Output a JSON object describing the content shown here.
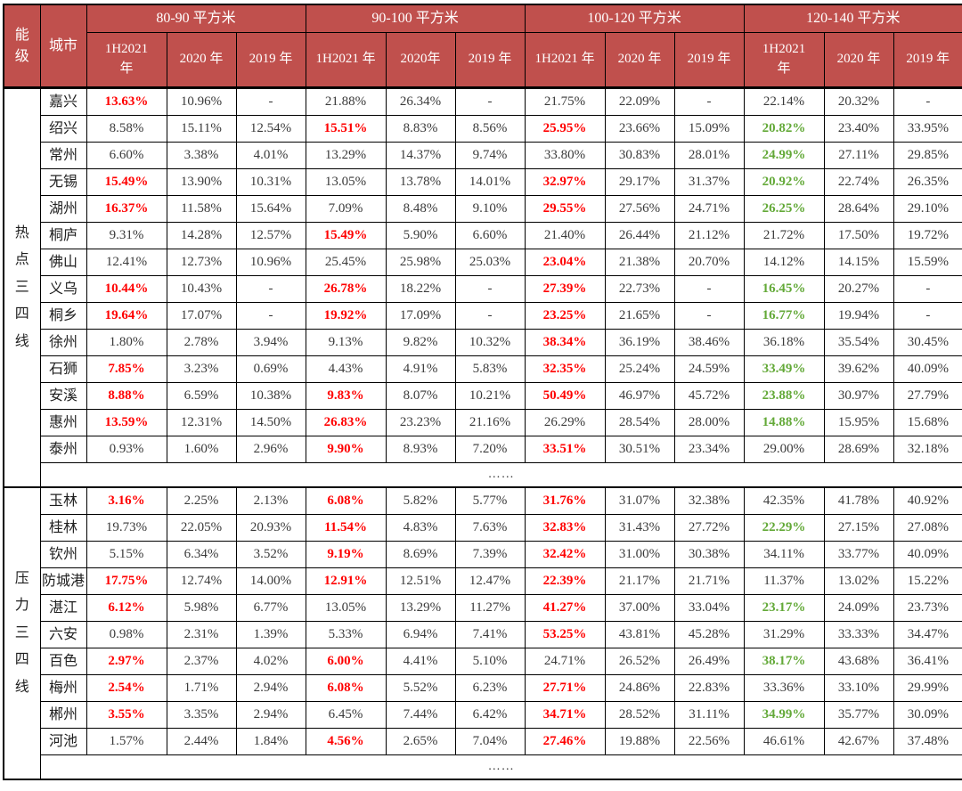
{
  "colors": {
    "header_bg": "#C0504D",
    "header_text": "#FFFFFF",
    "highlight_red": "#FF0000",
    "highlight_green": "#63A938",
    "body_text": "#3A3A3A",
    "border": "#000000"
  },
  "table": {
    "corner_header": "能级",
    "city_header": "城市",
    "groups": [
      {
        "label": "80-90 平方米",
        "years": [
          "1H2021\n年",
          "2020 年",
          "2019 年"
        ]
      },
      {
        "label": "90-100 平方米",
        "years": [
          "1H2021 年",
          "2020年",
          "2019 年"
        ]
      },
      {
        "label": "100-120 平方米",
        "years": [
          "1H2021 年",
          "2020 年",
          "2019 年"
        ]
      },
      {
        "label": "120-140 平方米",
        "years": [
          "1H2021\n年",
          "2020 年",
          "2019 年"
        ]
      }
    ],
    "blocks": [
      {
        "label": "热点三四线",
        "ellipsis": "……",
        "rows": [
          {
            "city": "嘉兴",
            "cells": [
              {
                "t": "13.63%",
                "hl": "red"
              },
              "10.96%",
              "-",
              "21.88%",
              "26.34%",
              "-",
              "21.75%",
              "22.09%",
              "-",
              "22.14%",
              "20.32%",
              "-"
            ]
          },
          {
            "city": "绍兴",
            "cells": [
              "8.58%",
              "15.11%",
              "12.54%",
              {
                "t": "15.51%",
                "hl": "red"
              },
              "8.83%",
              "8.56%",
              {
                "t": "25.95%",
                "hl": "red"
              },
              "23.66%",
              "15.09%",
              {
                "t": "20.82%",
                "hl": "green"
              },
              "23.40%",
              "33.95%"
            ]
          },
          {
            "city": "常州",
            "cells": [
              "6.60%",
              "3.38%",
              "4.01%",
              "13.29%",
              "14.37%",
              "9.74%",
              "33.80%",
              "30.83%",
              "28.01%",
              {
                "t": "24.99%",
                "hl": "green"
              },
              "27.11%",
              "29.85%"
            ]
          },
          {
            "city": "无锡",
            "cells": [
              {
                "t": "15.49%",
                "hl": "red"
              },
              "13.90%",
              "10.31%",
              "13.05%",
              "13.78%",
              "14.01%",
              {
                "t": "32.97%",
                "hl": "red"
              },
              "29.17%",
              "31.37%",
              {
                "t": "20.92%",
                "hl": "green"
              },
              "22.74%",
              "26.35%"
            ]
          },
          {
            "city": "湖州",
            "cells": [
              {
                "t": "16.37%",
                "hl": "red"
              },
              "11.58%",
              "15.64%",
              "7.09%",
              "8.48%",
              "9.10%",
              {
                "t": "29.55%",
                "hl": "red"
              },
              "27.56%",
              "24.71%",
              {
                "t": "26.25%",
                "hl": "green"
              },
              "28.64%",
              "29.10%"
            ]
          },
          {
            "city": "桐庐",
            "cells": [
              "9.31%",
              "14.28%",
              "12.57%",
              {
                "t": "15.49%",
                "hl": "red"
              },
              "5.90%",
              "6.60%",
              "21.40%",
              "26.44%",
              "21.12%",
              "21.72%",
              "17.50%",
              "19.72%"
            ]
          },
          {
            "city": "佛山",
            "cells": [
              "12.41%",
              "12.73%",
              "10.96%",
              "25.45%",
              "25.98%",
              "25.03%",
              {
                "t": "23.04%",
                "hl": "red"
              },
              "21.38%",
              "20.70%",
              "14.12%",
              "14.15%",
              "15.59%"
            ]
          },
          {
            "city": "义乌",
            "cells": [
              {
                "t": "10.44%",
                "hl": "red"
              },
              "10.43%",
              "-",
              {
                "t": "26.78%",
                "hl": "red"
              },
              "18.22%",
              "-",
              {
                "t": "27.39%",
                "hl": "red"
              },
              "22.73%",
              "-",
              {
                "t": "16.45%",
                "hl": "green"
              },
              "20.27%",
              "-"
            ]
          },
          {
            "city": "桐乡",
            "cells": [
              {
                "t": "19.64%",
                "hl": "red"
              },
              "17.07%",
              "-",
              {
                "t": "19.92%",
                "hl": "red"
              },
              "17.09%",
              "-",
              {
                "t": "23.25%",
                "hl": "red"
              },
              "21.65%",
              "-",
              {
                "t": "16.77%",
                "hl": "green"
              },
              "19.94%",
              "-"
            ]
          },
          {
            "city": "徐州",
            "cells": [
              "1.80%",
              "2.78%",
              "3.94%",
              "9.13%",
              "9.82%",
              "10.32%",
              {
                "t": "38.34%",
                "hl": "red"
              },
              "36.19%",
              "38.46%",
              "36.18%",
              "35.54%",
              "30.45%"
            ]
          },
          {
            "city": "石狮",
            "cells": [
              {
                "t": "7.85%",
                "hl": "red"
              },
              "3.23%",
              "0.69%",
              "4.43%",
              "4.91%",
              "5.83%",
              {
                "t": "32.35%",
                "hl": "red"
              },
              "25.24%",
              "24.59%",
              {
                "t": "33.49%",
                "hl": "green"
              },
              "39.62%",
              "40.09%"
            ]
          },
          {
            "city": "安溪",
            "cells": [
              {
                "t": "8.88%",
                "hl": "red"
              },
              "6.59%",
              "10.38%",
              {
                "t": "9.83%",
                "hl": "red"
              },
              "8.07%",
              "10.21%",
              {
                "t": "50.49%",
                "hl": "red"
              },
              "46.97%",
              "45.72%",
              {
                "t": "23.88%",
                "hl": "green"
              },
              "30.97%",
              "27.79%"
            ]
          },
          {
            "city": "惠州",
            "cells": [
              {
                "t": "13.59%",
                "hl": "red"
              },
              "12.31%",
              "14.50%",
              {
                "t": "26.83%",
                "hl": "red"
              },
              "23.23%",
              "21.16%",
              "26.29%",
              "28.54%",
              "28.00%",
              {
                "t": "14.88%",
                "hl": "green"
              },
              "15.95%",
              "15.68%"
            ]
          },
          {
            "city": "泰州",
            "cells": [
              "0.93%",
              "1.60%",
              "2.96%",
              {
                "t": "9.90%",
                "hl": "red"
              },
              "8.93%",
              "7.20%",
              {
                "t": "33.51%",
                "hl": "red"
              },
              "30.51%",
              "23.34%",
              "29.00%",
              "28.69%",
              "32.18%"
            ]
          }
        ]
      },
      {
        "label": "压力三四线",
        "ellipsis": "……",
        "rows": [
          {
            "city": "玉林",
            "cells": [
              {
                "t": "3.16%",
                "hl": "red"
              },
              "2.25%",
              "2.13%",
              {
                "t": "6.08%",
                "hl": "red"
              },
              "5.82%",
              "5.77%",
              {
                "t": "31.76%",
                "hl": "red"
              },
              "31.07%",
              "32.38%",
              "42.35%",
              "41.78%",
              "40.92%"
            ]
          },
          {
            "city": "桂林",
            "cells": [
              "19.73%",
              "22.05%",
              "20.93%",
              {
                "t": "11.54%",
                "hl": "red"
              },
              "4.83%",
              "7.63%",
              {
                "t": "32.83%",
                "hl": "red"
              },
              "31.43%",
              "27.72%",
              {
                "t": "22.29%",
                "hl": "green"
              },
              "27.15%",
              "27.08%"
            ]
          },
          {
            "city": "钦州",
            "cells": [
              "5.15%",
              "6.34%",
              "3.52%",
              {
                "t": "9.19%",
                "hl": "red"
              },
              "8.69%",
              "7.39%",
              {
                "t": "32.42%",
                "hl": "red"
              },
              "31.00%",
              "30.38%",
              "34.11%",
              "33.77%",
              "40.09%"
            ]
          },
          {
            "city": "防城港",
            "cells": [
              {
                "t": "17.75%",
                "hl": "red"
              },
              "12.74%",
              "14.00%",
              {
                "t": "12.91%",
                "hl": "red"
              },
              "12.51%",
              "12.47%",
              {
                "t": "22.39%",
                "hl": "red"
              },
              "21.17%",
              "21.71%",
              "11.37%",
              "13.02%",
              "15.22%"
            ]
          },
          {
            "city": "湛江",
            "cells": [
              {
                "t": "6.12%",
                "hl": "red"
              },
              "5.98%",
              "6.77%",
              "13.05%",
              "13.29%",
              "11.27%",
              {
                "t": "41.27%",
                "hl": "red"
              },
              "37.00%",
              "33.04%",
              {
                "t": "23.17%",
                "hl": "green"
              },
              "24.09%",
              "23.73%"
            ]
          },
          {
            "city": "六安",
            "cells": [
              "0.98%",
              "2.31%",
              "1.39%",
              "5.33%",
              "6.94%",
              "7.41%",
              {
                "t": "53.25%",
                "hl": "red"
              },
              "43.81%",
              "45.28%",
              "31.29%",
              "33.33%",
              "34.47%"
            ]
          },
          {
            "city": "百色",
            "cells": [
              {
                "t": "2.97%",
                "hl": "red"
              },
              "2.37%",
              "4.02%",
              {
                "t": "6.00%",
                "hl": "red"
              },
              "4.41%",
              "5.10%",
              "24.71%",
              "26.52%",
              "26.49%",
              {
                "t": "38.17%",
                "hl": "green"
              },
              "43.68%",
              "36.41%"
            ]
          },
          {
            "city": "梅州",
            "cells": [
              {
                "t": "2.54%",
                "hl": "red"
              },
              "1.71%",
              "2.94%",
              {
                "t": "6.08%",
                "hl": "red"
              },
              "5.52%",
              "6.23%",
              {
                "t": "27.71%",
                "hl": "red"
              },
              "24.86%",
              "22.83%",
              "33.36%",
              "33.10%",
              "29.99%"
            ]
          },
          {
            "city": "郴州",
            "cells": [
              {
                "t": "3.55%",
                "hl": "red"
              },
              "3.35%",
              "2.94%",
              "6.45%",
              "7.44%",
              "6.42%",
              {
                "t": "34.71%",
                "hl": "red"
              },
              "28.52%",
              "31.11%",
              {
                "t": "34.99%",
                "hl": "green"
              },
              "35.77%",
              "30.09%"
            ]
          },
          {
            "city": "河池",
            "cells": [
              "1.57%",
              "2.44%",
              "1.84%",
              {
                "t": "4.56%",
                "hl": "red"
              },
              "2.65%",
              "7.04%",
              {
                "t": "27.46%",
                "hl": "red"
              },
              "19.88%",
              "22.56%",
              "46.61%",
              "42.67%",
              "37.48%"
            ]
          }
        ]
      }
    ]
  }
}
